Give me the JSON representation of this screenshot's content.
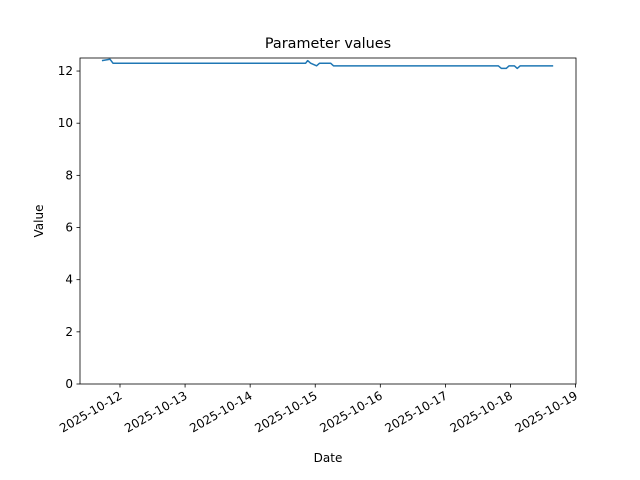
{
  "chart_data": {
    "type": "line",
    "title": "Parameter values",
    "xlabel": "Date",
    "ylabel": "Value",
    "x": [
      "2025-10-11T17:20",
      "2025-10-11T20:20",
      "2025-10-11T21:25",
      "2025-10-14T20:28",
      "2025-10-14T21:12",
      "2025-10-14T22:18",
      "2025-10-15T00:30",
      "2025-10-15T01:36",
      "2025-10-15T05:40",
      "2025-10-15T06:44",
      "2025-10-17T19:30",
      "2025-10-17T20:40",
      "2025-10-17T22:26",
      "2025-10-17T23:30",
      "2025-10-18T01:26",
      "2025-10-18T02:30",
      "2025-10-18T03:36",
      "2025-10-18T15:45"
    ],
    "series": [
      {
        "name": "Value",
        "color": "#1f77b4",
        "values": [
          12.4,
          12.45,
          12.3,
          12.3,
          12.4,
          12.3,
          12.2,
          12.3,
          12.3,
          12.2,
          12.2,
          12.1,
          12.1,
          12.2,
          12.2,
          12.1,
          12.2,
          12.2
        ]
      }
    ],
    "xlim": [
      "2025-10-11T09:15",
      "2025-10-19T00:10"
    ],
    "xticks": [
      "2025-10-12",
      "2025-10-13",
      "2025-10-14",
      "2025-10-15",
      "2025-10-16",
      "2025-10-17",
      "2025-10-18",
      "2025-10-19"
    ],
    "ylim": [
      0,
      12.5
    ],
    "yticks": [
      0,
      2,
      4,
      6,
      8,
      10,
      12
    ]
  }
}
